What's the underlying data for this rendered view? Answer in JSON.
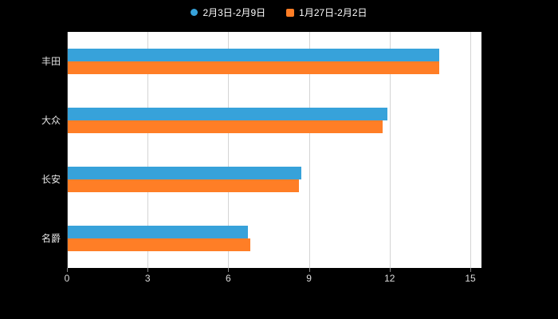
{
  "page": {
    "background_color": "#000000",
    "plot_background_color": "#ffffff"
  },
  "legend": {
    "items": [
      {
        "label": "2月3日-2月9日",
        "color": "#37A2DA",
        "marker": "circle"
      },
      {
        "label": "1月27日-2月2日",
        "color": "#FF7E26",
        "marker": "square"
      }
    ]
  },
  "chart_data": {
    "type": "bar",
    "orientation": "horizontal",
    "title": "",
    "xlabel": "",
    "ylabel": "",
    "categories": [
      "丰田",
      "大众",
      "长安",
      "名爵"
    ],
    "series": [
      {
        "name": "2月3日-2月9日",
        "color": "#37A2DA",
        "values": [
          13.8,
          11.9,
          8.7,
          6.7
        ]
      },
      {
        "name": "1月27日-2月2日",
        "color": "#FF7E26",
        "values": [
          13.8,
          11.7,
          8.6,
          6.8
        ]
      }
    ],
    "xlim": [
      0,
      15
    ],
    "x_ticks": [
      0,
      3,
      6,
      9,
      12,
      15
    ],
    "grid": true,
    "gridline_color": "#d4d4d4",
    "axis_line_color": "#333333",
    "tick_label_color": "#dddddd",
    "category_label_color": "#e6e6e6",
    "legend_position": "top"
  }
}
